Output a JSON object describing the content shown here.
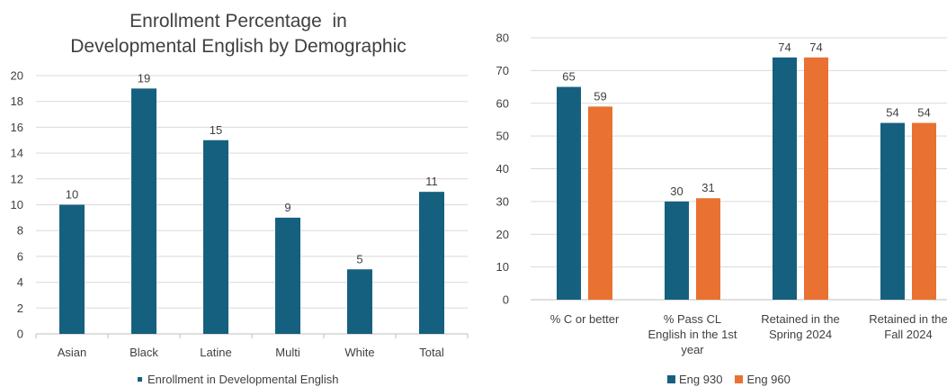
{
  "chart_data": [
    {
      "type": "bar",
      "title_lines": [
        "Enrollment Percentage  in",
        "Developmental English by Demographic"
      ],
      "categories": [
        "Asian",
        "Black",
        "Latine",
        "Multi",
        "White",
        "Total"
      ],
      "series": [
        {
          "name": "Enrollment in Developmental English",
          "values": [
            10,
            19,
            15,
            9,
            5,
            11
          ],
          "color": "#16607f"
        }
      ],
      "ylim": [
        0,
        20
      ],
      "yticks": [
        0,
        2,
        4,
        6,
        8,
        10,
        12,
        14,
        16,
        18,
        20
      ],
      "grid": true,
      "legend_position": "bottom"
    },
    {
      "type": "bar",
      "categories": [
        [
          "% C or better"
        ],
        [
          "% Pass CL",
          "English in the 1st",
          "year"
        ],
        [
          "Retained in the",
          "Spring 2024"
        ],
        [
          "Retained in the",
          "Fall 2024"
        ]
      ],
      "series": [
        {
          "name": "Eng 930",
          "values": [
            65,
            30,
            74,
            54
          ],
          "color": "#16607f"
        },
        {
          "name": "Eng 960",
          "values": [
            59,
            31,
            74,
            54
          ],
          "color": "#e97132"
        }
      ],
      "ylim": [
        0,
        80
      ],
      "yticks": [
        0,
        10,
        20,
        30,
        40,
        50,
        60,
        70,
        80
      ],
      "grid": true,
      "legend_position": "bottom"
    }
  ]
}
